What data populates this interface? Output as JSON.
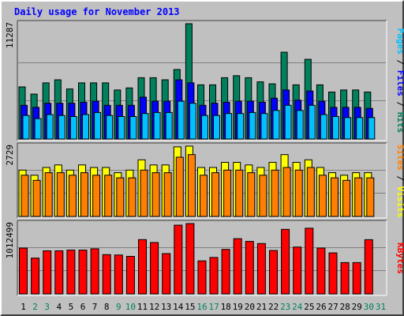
{
  "chart_data": {
    "type": "bar",
    "title": "Daily usage for November 2013",
    "categories": [
      "1",
      "2",
      "3",
      "4",
      "5",
      "6",
      "7",
      "8",
      "9",
      "10",
      "11",
      "12",
      "13",
      "14",
      "15",
      "16",
      "17",
      "18",
      "19",
      "20",
      "21",
      "22",
      "23",
      "24",
      "25",
      "26",
      "27",
      "28",
      "29",
      "30",
      "31"
    ],
    "weekend_days": [
      "2",
      "3",
      "9",
      "10",
      "16",
      "17",
      "23",
      "24",
      "30",
      "31"
    ],
    "colors": {
      "hits": "#00805c",
      "files": "#0000ff",
      "pages": "#00c0ff",
      "visits": "#ffff00",
      "sites": "#ff8000",
      "kbytes": "#ff0000",
      "title": "#0000ff",
      "weekday_label": "#000000",
      "weekend_label": "#00805c"
    },
    "panels": [
      {
        "id": "usage",
        "scale_label": "11287",
        "axis_max": 11287,
        "side_label": [
          {
            "text": "Pages",
            "color": "#00c0ff"
          },
          {
            "text": " / ",
            "color": "#000000"
          },
          {
            "text": "Files",
            "color": "#0000ff"
          },
          {
            "text": " / ",
            "color": "#000000"
          },
          {
            "text": "Hits",
            "color": "#00805c"
          }
        ],
        "series": [
          {
            "name": "Hits",
            "color": "#00805c",
            "values": [
              5100,
              4400,
              5500,
              5800,
              4900,
              5500,
              5500,
              5500,
              4800,
              5000,
              6000,
              6000,
              5800,
              6800,
              11287,
              5300,
              5300,
              6000,
              6200,
              6000,
              5600,
              5400,
              8500,
              5300,
              7800,
              5300,
              4600,
              4800,
              4800,
              4600,
              0
            ]
          },
          {
            "name": "Files",
            "color": "#0000ff",
            "values": [
              3300,
              3100,
              3500,
              3500,
              3500,
              3600,
              3700,
              3300,
              3300,
              3300,
              4100,
              3700,
              3700,
              5800,
              5500,
              3300,
              3500,
              3600,
              3700,
              3700,
              3600,
              4000,
              4800,
              3800,
              4700,
              3700,
              3100,
              3100,
              3100,
              3000,
              0
            ]
          },
          {
            "name": "Pages",
            "color": "#00c0ff",
            "values": [
              2300,
              2000,
              2400,
              2300,
              2200,
              2400,
              2600,
              2300,
              2200,
              2200,
              2500,
              2600,
              2600,
              3700,
              3500,
              2300,
              2300,
              2500,
              2500,
              2600,
              2500,
              2800,
              3300,
              2800,
              3300,
              2400,
              2200,
              2100,
              2100,
              2100,
              0
            ]
          }
        ]
      },
      {
        "id": "visits",
        "scale_label": "2729",
        "axis_max": 2729,
        "side_label": [
          {
            "text": "Sites",
            "color": "#ff8000"
          },
          {
            "text": " / ",
            "color": "#000000"
          },
          {
            "text": "Visits",
            "color": "#ffff00"
          }
        ],
        "series": [
          {
            "name": "Visits",
            "color": "#ffff00",
            "values": [
              1800,
              1600,
              1900,
              2000,
              1800,
              2000,
              1900,
              1900,
              1700,
              1800,
              2200,
              2000,
              2000,
              2700,
              2729,
              1900,
              1900,
              2100,
              2100,
              2000,
              1900,
              2100,
              2400,
              2100,
              2200,
              1900,
              1700,
              1600,
              1700,
              1700,
              0
            ]
          },
          {
            "name": "Sites",
            "color": "#ff8000",
            "values": [
              1600,
              1400,
              1700,
              1700,
              1600,
              1700,
              1600,
              1600,
              1500,
              1500,
              1800,
              1700,
              1700,
              2300,
              2400,
              1600,
              1700,
              1800,
              1800,
              1700,
              1600,
              1800,
              1900,
              1800,
              1900,
              1600,
              1500,
              1400,
              1500,
              1500,
              0
            ]
          }
        ]
      },
      {
        "id": "kbytes",
        "scale_label": "1012499",
        "axis_max": 1012499,
        "side_label": [
          {
            "text": "KBytes",
            "color": "#ff0000"
          }
        ],
        "series": [
          {
            "name": "KBytes",
            "color": "#ff0000",
            "values": [
              660000,
              515000,
              620000,
              620000,
              630000,
              630000,
              650000,
              565000,
              560000,
              540000,
              782000,
              740000,
              580000,
              990000,
              1012499,
              475000,
              525000,
              640000,
              795000,
              755000,
              725000,
              625000,
              930000,
              675000,
              945000,
              660000,
              590000,
              450000,
              450000,
              780000,
              0
            ]
          }
        ]
      }
    ]
  }
}
